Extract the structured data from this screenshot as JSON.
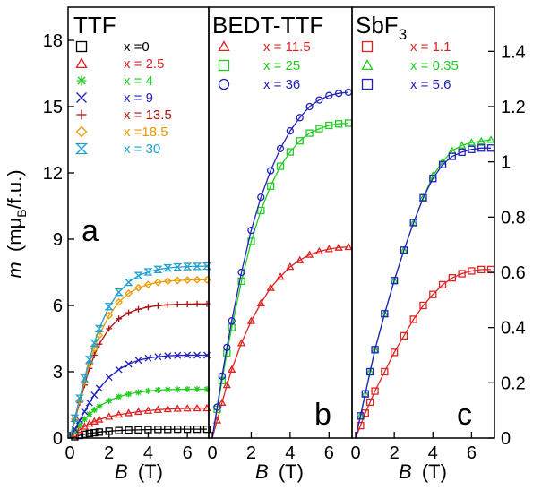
{
  "chart_data": [
    {
      "type": "line",
      "panel_letter": "a",
      "title": "TTF",
      "xlabel_var": "B",
      "xlabel_unit": "(T)",
      "ylabel": "m (mμB/f.u.)",
      "ylabel_var": "m",
      "ylabel_unit": "(mμ",
      "ylabel_sub": "B",
      "ylabel_tail": "/f.u.)",
      "xlim": [
        0,
        7
      ],
      "ylim": [
        0,
        19.5
      ],
      "xticks": [
        "0",
        "2",
        "4",
        "6"
      ],
      "yticks": [
        "0",
        "3",
        "6",
        "9",
        "12",
        "15",
        "18"
      ],
      "x": [
        0,
        0.25,
        0.5,
        0.75,
        1,
        1.25,
        1.5,
        2,
        2.5,
        3,
        3.5,
        4,
        4.5,
        5,
        5.5,
        6,
        6.5,
        7
      ],
      "series": [
        {
          "name": "x =0",
          "color": "#000000",
          "marker": "square",
          "values": [
            0,
            0.06,
            0.12,
            0.17,
            0.21,
            0.24,
            0.27,
            0.31,
            0.34,
            0.36,
            0.37,
            0.38,
            0.39,
            0.39,
            0.4,
            0.4,
            0.4,
            0.4
          ]
        },
        {
          "name": "x = 2.5",
          "color": "#dd2222",
          "marker": "triangle",
          "values": [
            0,
            0.19,
            0.37,
            0.52,
            0.65,
            0.75,
            0.84,
            0.97,
            1.06,
            1.13,
            1.19,
            1.24,
            1.28,
            1.31,
            1.33,
            1.34,
            1.35,
            1.35
          ]
        },
        {
          "name": "x = 4",
          "color": "#22cc22",
          "marker": "asterisk",
          "values": [
            0,
            0.3,
            0.59,
            0.85,
            1.08,
            1.27,
            1.43,
            1.69,
            1.87,
            1.99,
            2.07,
            2.13,
            2.17,
            2.19,
            2.2,
            2.21,
            2.21,
            2.21
          ]
        },
        {
          "name": "x = 9",
          "color": "#2222bb",
          "marker": "x",
          "values": [
            0,
            0.4,
            0.8,
            1.2,
            1.6,
            1.95,
            2.25,
            2.75,
            3.1,
            3.35,
            3.52,
            3.62,
            3.68,
            3.72,
            3.74,
            3.75,
            3.75,
            3.75
          ]
        },
        {
          "name": "x = 13.5",
          "color": "#aa1111",
          "marker": "plus",
          "values": [
            0,
            0.8,
            1.6,
            2.4,
            3.15,
            3.75,
            4.25,
            4.95,
            5.4,
            5.67,
            5.83,
            5.93,
            5.99,
            6.03,
            6.05,
            6.06,
            6.07,
            6.07
          ]
        },
        {
          "name": "x =18.5",
          "color": "#ee9900",
          "marker": "diamond",
          "values": [
            0,
            0.85,
            1.7,
            2.55,
            3.35,
            4.05,
            4.65,
            5.55,
            6.15,
            6.55,
            6.8,
            6.95,
            7.05,
            7.1,
            7.13,
            7.15,
            7.16,
            7.16
          ]
        },
        {
          "name": "x = 30",
          "color": "#22a0cc",
          "marker": "hourglass",
          "values": [
            0,
            0.9,
            1.8,
            2.7,
            3.55,
            4.3,
            4.95,
            5.95,
            6.6,
            7.05,
            7.35,
            7.52,
            7.63,
            7.7,
            7.74,
            7.76,
            7.77,
            7.78
          ]
        }
      ]
    },
    {
      "type": "line",
      "panel_letter": "b",
      "title": "BEDT-TTF",
      "xlabel_var": "B",
      "xlabel_unit": "(T)",
      "xlim": [
        0,
        7
      ],
      "ylim": [
        0,
        19.5
      ],
      "xticks": [
        "0",
        "2",
        "4",
        "6"
      ],
      "x": [
        0,
        0.25,
        0.5,
        0.75,
        1,
        1.5,
        2,
        2.5,
        3,
        3.5,
        4,
        4.5,
        5,
        5.5,
        6,
        6.5,
        7
      ],
      "series": [
        {
          "name": "x = 11.5",
          "color": "#dd2222",
          "marker": "triangle",
          "values": [
            0,
            0.8,
            1.6,
            2.4,
            3.1,
            4.3,
            5.3,
            6.1,
            6.8,
            7.3,
            7.75,
            8.05,
            8.3,
            8.45,
            8.55,
            8.62,
            8.65
          ]
        },
        {
          "name": "x = 25",
          "color": "#22cc22",
          "marker": "square",
          "values": [
            0,
            1.3,
            2.6,
            3.85,
            5.0,
            7.1,
            8.9,
            10.3,
            11.4,
            12.3,
            12.95,
            13.45,
            13.8,
            14.0,
            14.15,
            14.22,
            14.25
          ]
        },
        {
          "name": "x = 36",
          "color": "#2222bb",
          "marker": "circle",
          "values": [
            0,
            1.4,
            2.8,
            4.1,
            5.3,
            7.5,
            9.4,
            10.9,
            12.1,
            13.1,
            13.9,
            14.5,
            15.0,
            15.3,
            15.5,
            15.6,
            15.65
          ]
        }
      ]
    },
    {
      "type": "line",
      "panel_letter": "c",
      "title": "SbF3",
      "title_main": "SbF",
      "title_sub": "3",
      "xlabel_var": "B",
      "xlabel_unit": "(T)",
      "xlim": [
        0,
        7
      ],
      "ylim": [
        0,
        1.56
      ],
      "xticks": [
        "0",
        "2",
        "4",
        "6"
      ],
      "yticks": [
        "0",
        "0.2",
        "0.4",
        "0.6",
        "0.8",
        "1",
        "1.2",
        "1.4"
      ],
      "x": [
        0,
        0.25,
        0.5,
        0.75,
        1,
        1.5,
        2,
        2.5,
        3,
        3.5,
        4,
        4.5,
        5,
        5.5,
        6,
        6.5,
        7
      ],
      "series": [
        {
          "name": "x = 1.1",
          "color": "#dd2222",
          "marker": "square",
          "values": [
            0,
            0.045,
            0.09,
            0.13,
            0.17,
            0.24,
            0.31,
            0.37,
            0.43,
            0.48,
            0.52,
            0.555,
            0.58,
            0.595,
            0.605,
            0.61,
            0.61
          ]
        },
        {
          "name": "x = 0.35",
          "color": "#22cc22",
          "marker": "triangle",
          "values": [
            0,
            0.08,
            0.16,
            0.24,
            0.32,
            0.45,
            0.57,
            0.68,
            0.78,
            0.87,
            0.95,
            1.0,
            1.04,
            1.06,
            1.07,
            1.075,
            1.08
          ]
        },
        {
          "name": "x = 5.6",
          "color": "#2222bb",
          "marker": "square",
          "values": [
            0,
            0.08,
            0.16,
            0.24,
            0.32,
            0.45,
            0.57,
            0.68,
            0.78,
            0.87,
            0.94,
            0.99,
            1.02,
            1.035,
            1.045,
            1.05,
            1.05
          ]
        }
      ]
    }
  ]
}
